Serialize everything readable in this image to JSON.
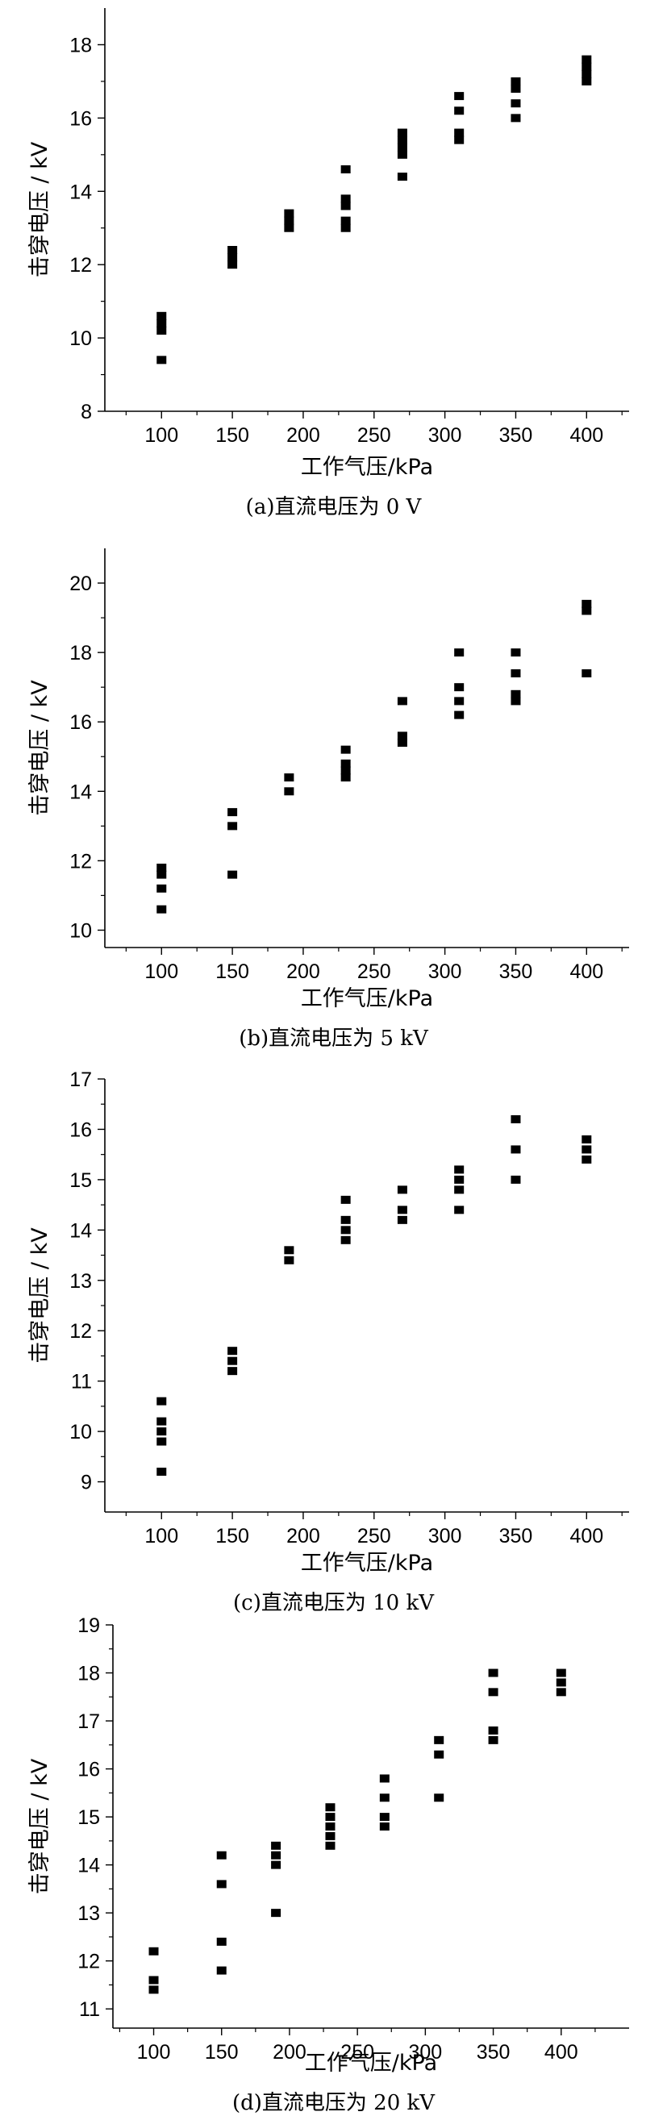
{
  "chart_data": [
    {
      "type": "scatter",
      "caption": "(a)直流电压为 0 V",
      "xlabel": "工作气压/kPa",
      "ylabel": "击穿电压 / kV",
      "xlim": [
        60,
        430
      ],
      "ylim": [
        8,
        19
      ],
      "xticks": [
        100,
        150,
        200,
        250,
        300,
        350,
        400
      ],
      "yticks": [
        8,
        10,
        12,
        14,
        16,
        18
      ],
      "points": [
        [
          100,
          9.4
        ],
        [
          100,
          10.2
        ],
        [
          100,
          10.4
        ],
        [
          100,
          10.6
        ],
        [
          150,
          12.0
        ],
        [
          150,
          12.2
        ],
        [
          150,
          12.4
        ],
        [
          190,
          13.0
        ],
        [
          190,
          13.2
        ],
        [
          190,
          13.4
        ],
        [
          230,
          13.0
        ],
        [
          230,
          13.2
        ],
        [
          230,
          13.6
        ],
        [
          230,
          13.8
        ],
        [
          230,
          14.6
        ],
        [
          270,
          14.4
        ],
        [
          270,
          15.0
        ],
        [
          270,
          15.2
        ],
        [
          270,
          15.4
        ],
        [
          270,
          15.6
        ],
        [
          310,
          15.4
        ],
        [
          310,
          15.6
        ],
        [
          310,
          16.2
        ],
        [
          310,
          16.6
        ],
        [
          350,
          16.0
        ],
        [
          350,
          16.4
        ],
        [
          350,
          16.8
        ],
        [
          350,
          17.0
        ],
        [
          400,
          17.0
        ],
        [
          400,
          17.2
        ],
        [
          400,
          17.4
        ],
        [
          400,
          17.6
        ]
      ]
    },
    {
      "type": "scatter",
      "caption": "(b)直流电压为 5 kV",
      "xlabel": "工作气压/kPa",
      "ylabel": "击穿电压 / kV",
      "xlim": [
        60,
        430
      ],
      "ylim": [
        9.5,
        21
      ],
      "xticks": [
        100,
        150,
        200,
        250,
        300,
        350,
        400
      ],
      "yticks": [
        10,
        12,
        14,
        16,
        18,
        20
      ],
      "points": [
        [
          100,
          10.6
        ],
        [
          100,
          11.2
        ],
        [
          100,
          11.6
        ],
        [
          100,
          11.8
        ],
        [
          150,
          11.6
        ],
        [
          150,
          13.0
        ],
        [
          150,
          13.4
        ],
        [
          190,
          14.0
        ],
        [
          190,
          14.4
        ],
        [
          230,
          14.4
        ],
        [
          230,
          14.6
        ],
        [
          230,
          14.8
        ],
        [
          230,
          15.2
        ],
        [
          270,
          15.4
        ],
        [
          270,
          15.6
        ],
        [
          270,
          16.6
        ],
        [
          310,
          16.2
        ],
        [
          310,
          16.6
        ],
        [
          310,
          17.0
        ],
        [
          310,
          18.0
        ],
        [
          350,
          16.6
        ],
        [
          350,
          16.8
        ],
        [
          350,
          17.4
        ],
        [
          350,
          18.0
        ],
        [
          400,
          17.4
        ],
        [
          400,
          19.2
        ],
        [
          400,
          19.4
        ]
      ]
    },
    {
      "type": "scatter",
      "caption": "(c)直流电压为 10 kV",
      "xlabel": "工作气压/kPa",
      "ylabel": "击穿电压 / kV",
      "xlim": [
        60,
        430
      ],
      "ylim": [
        8.4,
        17
      ],
      "xticks": [
        100,
        150,
        200,
        250,
        300,
        350,
        400
      ],
      "yticks": [
        9,
        10,
        11,
        12,
        13,
        14,
        15,
        16,
        17
      ],
      "points": [
        [
          100,
          9.2
        ],
        [
          100,
          9.8
        ],
        [
          100,
          10.0
        ],
        [
          100,
          10.2
        ],
        [
          100,
          10.6
        ],
        [
          150,
          11.2
        ],
        [
          150,
          11.4
        ],
        [
          150,
          11.6
        ],
        [
          190,
          13.4
        ],
        [
          190,
          13.6
        ],
        [
          230,
          13.8
        ],
        [
          230,
          14.0
        ],
        [
          230,
          14.2
        ],
        [
          230,
          14.6
        ],
        [
          270,
          14.2
        ],
        [
          270,
          14.4
        ],
        [
          270,
          14.8
        ],
        [
          310,
          14.4
        ],
        [
          310,
          14.8
        ],
        [
          310,
          15.0
        ],
        [
          310,
          15.2
        ],
        [
          350,
          15.0
        ],
        [
          350,
          15.6
        ],
        [
          350,
          16.2
        ],
        [
          400,
          15.4
        ],
        [
          400,
          15.6
        ],
        [
          400,
          15.8
        ]
      ]
    },
    {
      "type": "scatter",
      "caption": "(d)直流电压为 20 kV",
      "xlabel": "工作气压/kPa",
      "ylabel": "击穿电压 / kV",
      "xlim": [
        70,
        450
      ],
      "ylim": [
        10.6,
        19
      ],
      "xticks": [
        100,
        150,
        200,
        250,
        300,
        350,
        400
      ],
      "yticks": [
        11,
        12,
        13,
        14,
        15,
        16,
        17,
        18,
        19
      ],
      "points": [
        [
          100,
          11.4
        ],
        [
          100,
          11.6
        ],
        [
          100,
          12.2
        ],
        [
          150,
          11.8
        ],
        [
          150,
          12.4
        ],
        [
          150,
          13.6
        ],
        [
          150,
          14.2
        ],
        [
          190,
          13.0
        ],
        [
          190,
          14.0
        ],
        [
          190,
          14.2
        ],
        [
          190,
          14.4
        ],
        [
          230,
          14.4
        ],
        [
          230,
          14.6
        ],
        [
          230,
          14.8
        ],
        [
          230,
          15.0
        ],
        [
          230,
          15.2
        ],
        [
          270,
          14.8
        ],
        [
          270,
          15.0
        ],
        [
          270,
          15.4
        ],
        [
          270,
          15.8
        ],
        [
          310,
          15.4
        ],
        [
          310,
          16.3
        ],
        [
          310,
          16.6
        ],
        [
          350,
          16.6
        ],
        [
          350,
          16.8
        ],
        [
          350,
          17.6
        ],
        [
          350,
          18.0
        ],
        [
          400,
          17.6
        ],
        [
          400,
          17.8
        ],
        [
          400,
          18.0
        ]
      ]
    }
  ]
}
